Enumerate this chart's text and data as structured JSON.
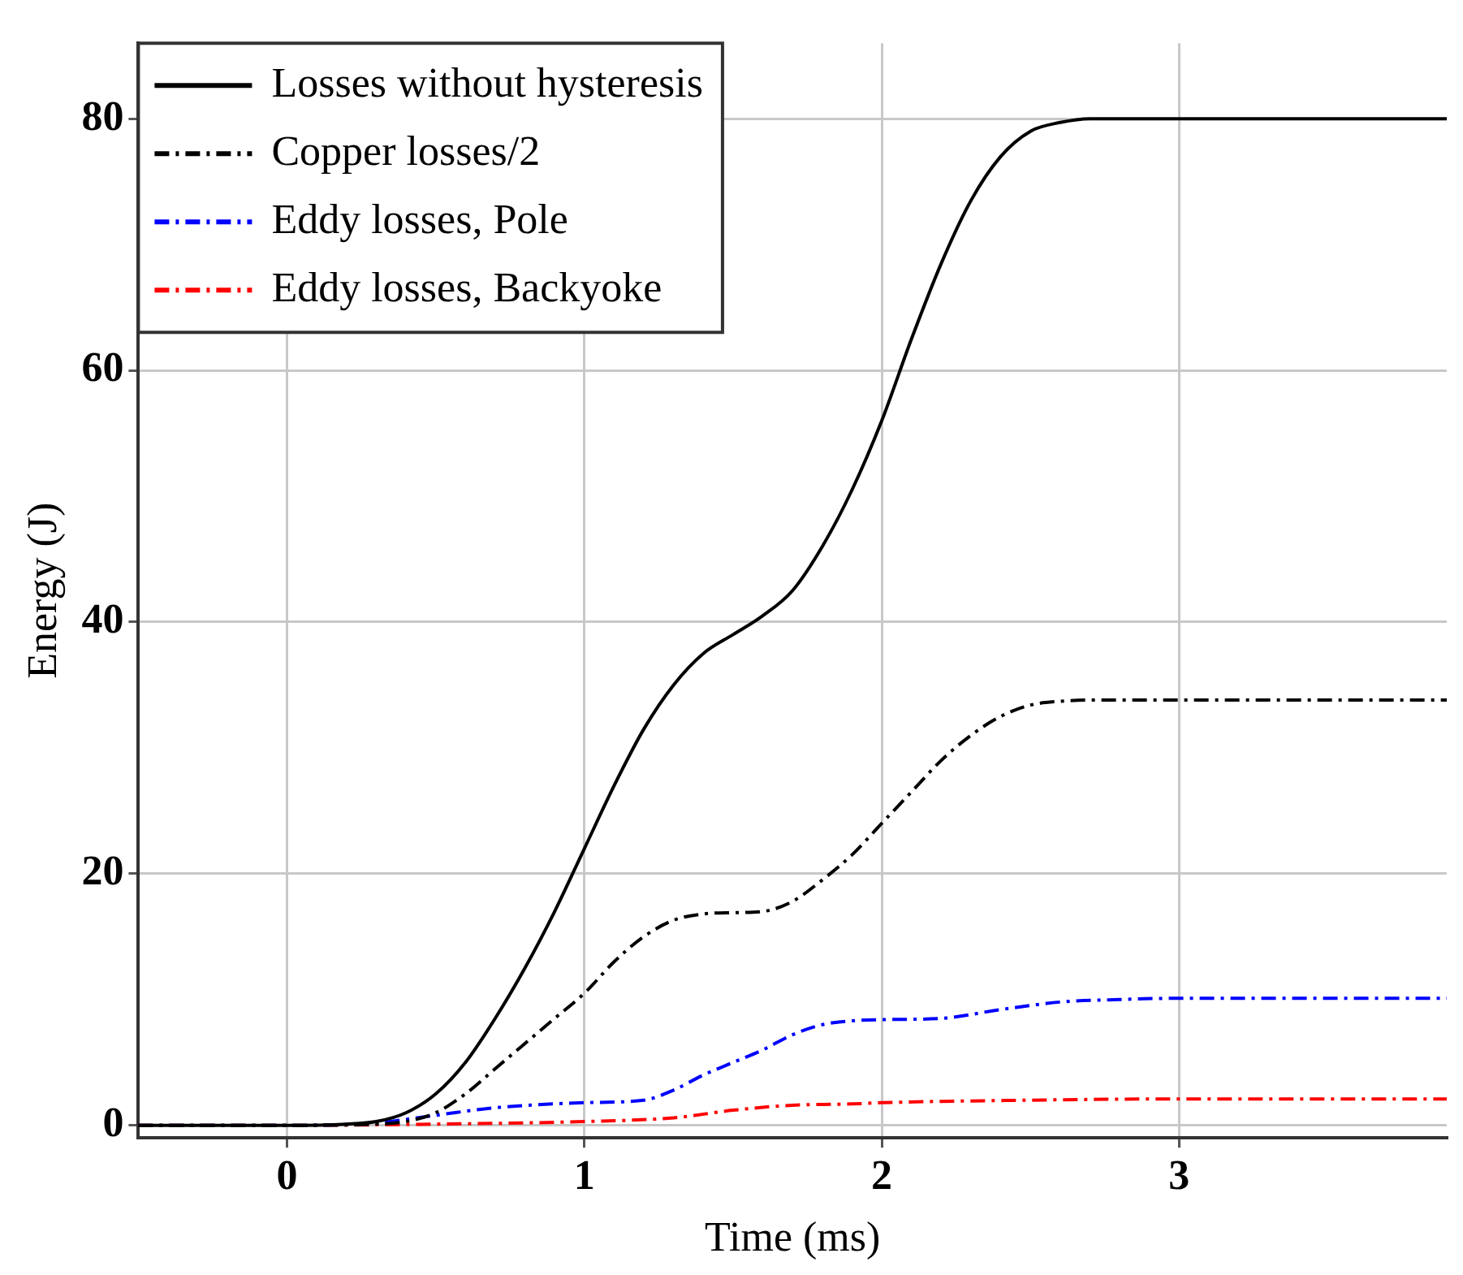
{
  "chart_data": {
    "type": "line",
    "xlabel": "Time (ms)",
    "ylabel": "Energy (J)",
    "xlim": [
      -0.5,
      3.9
    ],
    "ylim": [
      -1,
      86
    ],
    "xticks": [
      0,
      1,
      2,
      3
    ],
    "yticks": [
      0,
      20,
      40,
      60,
      80
    ],
    "grid": true,
    "legend": "top left",
    "marker": "none",
    "series": [
      {
        "name": "Losses without hysteresis",
        "color": "#000000",
        "line_style": "solid",
        "x": [
          -0.5,
          0,
          0.2,
          0.3,
          0.4,
          0.5,
          0.6,
          0.7,
          0.8,
          0.9,
          1.0,
          1.1,
          1.2,
          1.3,
          1.4,
          1.5,
          1.6,
          1.7,
          1.8,
          1.9,
          2.0,
          2.1,
          2.2,
          2.3,
          2.4,
          2.5,
          2.6,
          2.7,
          3.0,
          3.9
        ],
        "values": [
          0,
          0,
          0.1,
          0.3,
          1,
          2.5,
          5,
          8.5,
          12.5,
          17,
          22,
          27,
          31.5,
          35,
          37.5,
          39,
          40.5,
          42.5,
          46,
          50.5,
          56,
          62.5,
          68.5,
          73.5,
          77,
          79,
          79.7,
          80,
          80,
          80
        ]
      },
      {
        "name": "Copper losses/2",
        "color": "#000000",
        "line_style": "dashed",
        "x": [
          -0.5,
          0,
          0.3,
          0.4,
          0.5,
          0.6,
          0.7,
          0.8,
          0.9,
          1.0,
          1.1,
          1.2,
          1.3,
          1.4,
          1.5,
          1.6,
          1.7,
          1.8,
          1.9,
          2.0,
          2.1,
          2.2,
          2.3,
          2.4,
          2.5,
          2.6,
          2.7,
          3.0,
          3.9
        ],
        "values": [
          0,
          0,
          0.1,
          0.3,
          1,
          2.5,
          4.5,
          6.5,
          8.5,
          10.5,
          13,
          15,
          16.3,
          16.8,
          16.9,
          17,
          17.8,
          19.5,
          21.5,
          24,
          26.5,
          29,
          31,
          32.5,
          33.4,
          33.7,
          33.8,
          33.8,
          33.8
        ]
      },
      {
        "name": "Eddy losses, Pole",
        "color": "#0000ff",
        "line_style": "dashed",
        "x": [
          -0.5,
          0,
          0.3,
          0.5,
          0.7,
          1.0,
          1.2,
          1.3,
          1.4,
          1.5,
          1.6,
          1.7,
          1.8,
          1.9,
          2.0,
          2.2,
          2.4,
          2.6,
          2.8,
          3.0,
          3.9
        ],
        "values": [
          0,
          0,
          0.2,
          0.8,
          1.4,
          1.8,
          2.0,
          2.8,
          4,
          5,
          6,
          7.2,
          8,
          8.3,
          8.4,
          8.5,
          9.2,
          9.8,
          10,
          10.1,
          10.1
        ]
      },
      {
        "name": "Eddy losses, Backyoke",
        "color": "#ff0000",
        "line_style": "dashed",
        "x": [
          -0.5,
          0,
          0.5,
          1.0,
          1.3,
          1.5,
          1.7,
          1.9,
          2.0,
          2.5,
          3.0,
          3.9
        ],
        "values": [
          0,
          0,
          0.1,
          0.3,
          0.6,
          1.2,
          1.6,
          1.7,
          1.8,
          2.0,
          2.1,
          2.1
        ]
      }
    ]
  }
}
